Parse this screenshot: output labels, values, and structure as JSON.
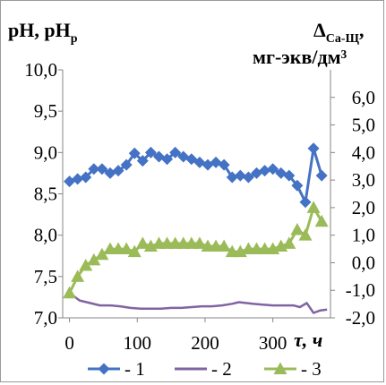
{
  "chart_data": {
    "type": "line",
    "y_left_title": {
      "main": "pH, pH",
      "sub": "р"
    },
    "y_right_title": {
      "line1_main": "Δ",
      "line1_sub": "Са-Щ",
      "line1_tail": ",",
      "line2": "мг-экв/дм³"
    },
    "x_title": {
      "symbol": "τ",
      "unit": ", ч"
    },
    "x_ticks": [
      "0",
      "100",
      "200",
      "300"
    ],
    "x_tick_values": [
      0,
      100,
      200,
      300
    ],
    "xlim": [
      -10,
      385
    ],
    "y_left_ticks": [
      "7,0",
      "7,5",
      "8,0",
      "8,5",
      "9,0",
      "9,5",
      "10,0"
    ],
    "y_left_tick_values": [
      7.0,
      7.5,
      8.0,
      8.5,
      9.0,
      9.5,
      10.0
    ],
    "ylim_left": [
      7.0,
      10.0
    ],
    "y_right_ticks": [
      "-2,0",
      "-1,0",
      "0,0",
      "1,0",
      "2,0",
      "3,0",
      "4,0",
      "5,0",
      "6,0"
    ],
    "y_right_tick_values": [
      -2.0,
      -1.0,
      0.0,
      1.0,
      2.0,
      3.0,
      4.0,
      5.0,
      6.0
    ],
    "ylim_right": [
      -2.0,
      7.0
    ],
    "grid": false,
    "legend_position": "bottom",
    "series": [
      {
        "name": "- 1",
        "axis": "left",
        "marker": "diamond",
        "color": "#4472c4",
        "x": [
          0,
          12,
          24,
          36,
          48,
          60,
          72,
          84,
          96,
          108,
          120,
          132,
          144,
          156,
          168,
          180,
          192,
          204,
          216,
          228,
          240,
          252,
          264,
          276,
          288,
          300,
          312,
          324,
          336,
          348,
          360,
          372
        ],
        "y": [
          8.65,
          8.68,
          8.7,
          8.8,
          8.8,
          8.75,
          8.78,
          8.85,
          8.99,
          8.9,
          9.0,
          8.95,
          8.92,
          9.0,
          8.95,
          8.92,
          8.88,
          8.85,
          8.88,
          8.85,
          8.7,
          8.72,
          8.7,
          8.75,
          8.78,
          8.8,
          8.75,
          8.72,
          8.6,
          8.4,
          9.05,
          8.72
        ]
      },
      {
        "name": "- 2",
        "axis": "left",
        "marker": "none",
        "color": "#8064a2",
        "x": [
          0,
          15,
          30,
          45,
          60,
          75,
          90,
          105,
          120,
          135,
          150,
          165,
          180,
          195,
          210,
          225,
          240,
          250,
          260,
          270,
          285,
          300,
          315,
          330,
          340,
          350,
          360,
          370,
          380
        ],
        "y": [
          7.3,
          7.21,
          7.18,
          7.15,
          7.15,
          7.14,
          7.12,
          7.11,
          7.11,
          7.11,
          7.12,
          7.12,
          7.13,
          7.14,
          7.14,
          7.15,
          7.17,
          7.19,
          7.18,
          7.17,
          7.16,
          7.15,
          7.15,
          7.15,
          7.13,
          7.18,
          7.06,
          7.09,
          7.1
        ]
      },
      {
        "name": "- 3",
        "axis": "right",
        "marker": "triangle",
        "color": "#9bbb59",
        "x": [
          0,
          12,
          24,
          36,
          48,
          60,
          72,
          84,
          96,
          108,
          120,
          132,
          144,
          156,
          168,
          180,
          192,
          204,
          216,
          228,
          240,
          252,
          264,
          276,
          288,
          300,
          312,
          324,
          336,
          348,
          360,
          372
        ],
        "y": [
          -1.1,
          -0.5,
          -0.1,
          0.1,
          0.3,
          0.5,
          0.5,
          0.5,
          0.4,
          0.7,
          0.6,
          0.7,
          0.7,
          0.7,
          0.7,
          0.7,
          0.7,
          0.6,
          0.6,
          0.6,
          0.4,
          0.4,
          0.5,
          0.5,
          0.5,
          0.5,
          0.6,
          0.7,
          1.2,
          1.0,
          2.0,
          1.5
        ]
      }
    ]
  }
}
